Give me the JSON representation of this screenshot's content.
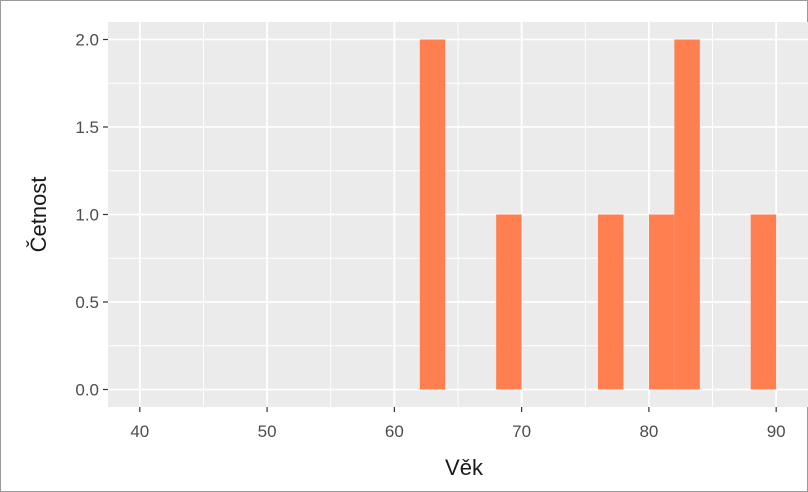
{
  "chart_data": {
    "type": "bar",
    "subtype": "histogram",
    "title": "",
    "xlabel": "Věk",
    "ylabel": "Četnost",
    "bin_width": 2,
    "bins": [
      {
        "x0": 62,
        "x1": 64,
        "count": 2
      },
      {
        "x0": 68,
        "x1": 70,
        "count": 1
      },
      {
        "x0": 76,
        "x1": 78,
        "count": 1
      },
      {
        "x0": 80,
        "x1": 82,
        "count": 1
      },
      {
        "x0": 82,
        "x1": 84,
        "count": 2
      },
      {
        "x0": 88,
        "x1": 90,
        "count": 1
      }
    ],
    "xlim": [
      37.5,
      92.5
    ],
    "ylim": [
      -0.1,
      2.1
    ],
    "x_ticks": [
      40,
      50,
      60,
      70,
      80,
      90
    ],
    "x_tick_labels": [
      "40",
      "50",
      "60",
      "70",
      "80",
      "90"
    ],
    "y_ticks": [
      0,
      0.5,
      1,
      1.5,
      2
    ],
    "y_tick_labels": [
      "0.0",
      "0.5",
      "1.0",
      "1.5",
      "2.0"
    ],
    "grid": true,
    "bar_color": "#FF7F50",
    "panel_color": "#EBEBEB",
    "grid_color": "#FFFFFF"
  }
}
